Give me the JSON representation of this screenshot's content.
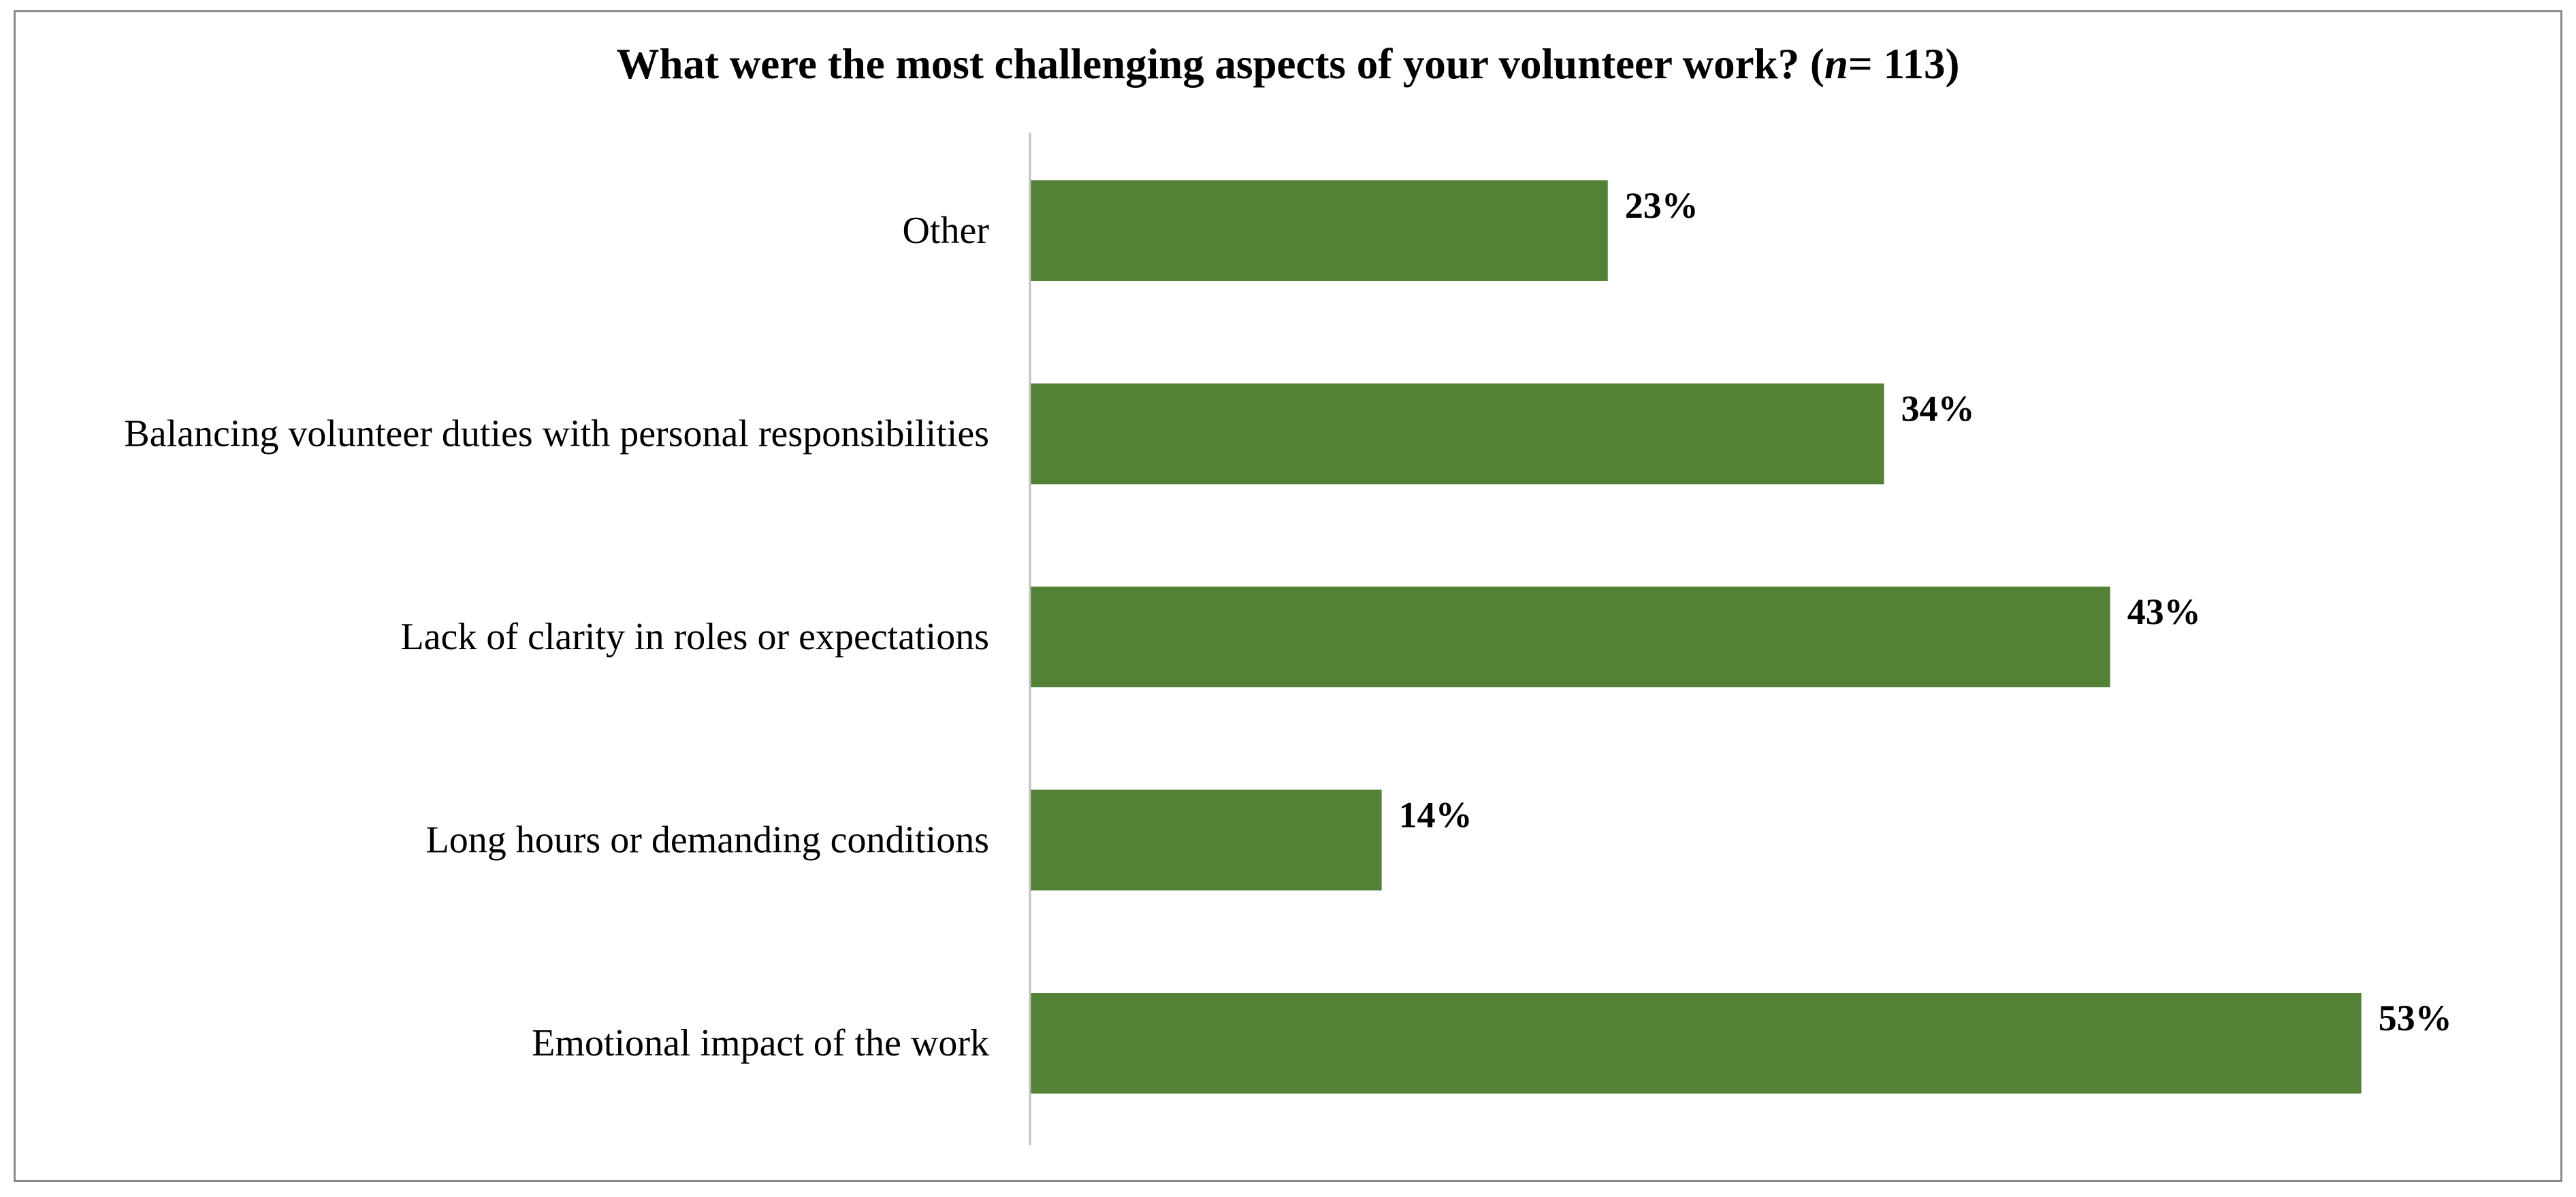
{
  "chart_data": {
    "type": "bar",
    "orientation": "horizontal",
    "title_main": "What were the most challenging aspects of your volunteer work? (",
    "title_n_symbol": "n",
    "title_n_value": "= 113)",
    "categories": [
      "Other",
      "Balancing volunteer duties with personal responsibilities",
      "Lack of clarity in roles or expectations",
      "Long hours or demanding conditions",
      "Emotional impact of the work"
    ],
    "values": [
      23,
      34,
      43,
      14,
      53
    ],
    "value_labels": [
      "23%",
      "34%",
      "43%",
      "14%",
      "53%"
    ],
    "value_unit": "%",
    "xlim": [
      0,
      60
    ],
    "grid": false,
    "legend": "none",
    "colors": {
      "bar": "#538135",
      "axis": "#bfbfbf",
      "frame": "#8a8a8a",
      "text": "#000000"
    }
  }
}
